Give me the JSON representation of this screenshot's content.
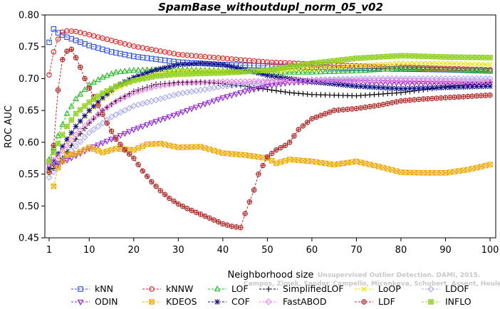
{
  "chart_data": {
    "type": "line",
    "title": "SpamBase_withoutdupl_norm_05_v02",
    "xlabel": "Neighborhood size",
    "ylabel": "ROC AUC",
    "xlim": [
      1,
      100
    ],
    "ylim": [
      0.45,
      0.8
    ],
    "xticks": [
      1,
      10,
      20,
      30,
      40,
      50,
      60,
      70,
      80,
      90,
      100
    ],
    "yticks": [
      0.45,
      0.5,
      0.55,
      0.6,
      0.65,
      0.7,
      0.75,
      0.8
    ],
    "ytick_labels": [
      "0.45",
      "0.50",
      "0.55",
      "0.60",
      "0.65",
      "0.70",
      "0.75",
      "0.80"
    ],
    "grid": false,
    "legend_position": "bottom",
    "credit": "Campos, Zimek, Sander, Campello, Micenkova, Schubert, Assent, Houle",
    "credit_line1": "Unsupervised Outlier Detection. DAMI, 2015.",
    "series": [
      {
        "name": "kNN",
        "color": "#2a4ed8",
        "marker": "square",
        "points": [
          [
            1,
            0.757
          ],
          [
            2,
            0.778
          ],
          [
            3,
            0.772
          ],
          [
            5,
            0.765
          ],
          [
            7,
            0.76
          ],
          [
            10,
            0.752
          ],
          [
            15,
            0.742
          ],
          [
            20,
            0.735
          ],
          [
            30,
            0.726
          ],
          [
            40,
            0.722
          ],
          [
            50,
            0.72
          ],
          [
            60,
            0.718
          ],
          [
            70,
            0.716
          ],
          [
            80,
            0.715
          ],
          [
            90,
            0.714
          ],
          [
            100,
            0.712
          ]
        ]
      },
      {
        "name": "kNNW",
        "color": "#e02020",
        "marker": "circle",
        "points": [
          [
            1,
            0.706
          ],
          [
            2,
            0.742
          ],
          [
            3,
            0.762
          ],
          [
            4,
            0.773
          ],
          [
            5,
            0.775
          ],
          [
            7,
            0.774
          ],
          [
            10,
            0.769
          ],
          [
            15,
            0.76
          ],
          [
            20,
            0.751
          ],
          [
            30,
            0.738
          ],
          [
            40,
            0.732
          ],
          [
            50,
            0.726
          ],
          [
            60,
            0.723
          ],
          [
            70,
            0.72
          ],
          [
            80,
            0.718
          ],
          [
            90,
            0.716
          ],
          [
            100,
            0.714
          ]
        ]
      },
      {
        "name": "LOF",
        "color": "#22b822",
        "marker": "triangle-up",
        "points": [
          [
            1,
            0.573
          ],
          [
            3,
            0.61
          ],
          [
            5,
            0.645
          ],
          [
            7,
            0.668
          ],
          [
            10,
            0.69
          ],
          [
            13,
            0.702
          ],
          [
            16,
            0.71
          ],
          [
            20,
            0.713
          ],
          [
            25,
            0.714
          ],
          [
            30,
            0.714
          ],
          [
            40,
            0.712
          ],
          [
            50,
            0.71
          ],
          [
            60,
            0.71
          ],
          [
            70,
            0.712
          ],
          [
            80,
            0.716
          ],
          [
            90,
            0.714
          ],
          [
            100,
            0.712
          ]
        ]
      },
      {
        "name": "SimplifiedLOF",
        "color": "#000000",
        "marker": "plus",
        "points": [
          [
            1,
            0.553
          ],
          [
            3,
            0.565
          ],
          [
            5,
            0.585
          ],
          [
            7,
            0.605
          ],
          [
            10,
            0.63
          ],
          [
            13,
            0.65
          ],
          [
            16,
            0.665
          ],
          [
            20,
            0.68
          ],
          [
            25,
            0.691
          ],
          [
            30,
            0.694
          ],
          [
            35,
            0.695
          ],
          [
            40,
            0.692
          ],
          [
            45,
            0.688
          ],
          [
            50,
            0.683
          ],
          [
            55,
            0.678
          ],
          [
            60,
            0.675
          ],
          [
            70,
            0.673
          ],
          [
            80,
            0.678
          ],
          [
            90,
            0.687
          ],
          [
            100,
            0.694
          ]
        ]
      },
      {
        "name": "LoOP",
        "color": "#e8e000",
        "marker": "x",
        "points": [
          [
            1,
            0.555
          ],
          [
            3,
            0.575
          ],
          [
            5,
            0.6
          ],
          [
            7,
            0.625
          ],
          [
            10,
            0.648
          ],
          [
            13,
            0.667
          ],
          [
            16,
            0.683
          ],
          [
            20,
            0.697
          ],
          [
            25,
            0.708
          ],
          [
            30,
            0.712
          ],
          [
            40,
            0.712
          ],
          [
            50,
            0.712
          ],
          [
            60,
            0.716
          ],
          [
            70,
            0.72
          ],
          [
            80,
            0.724
          ],
          [
            90,
            0.724
          ],
          [
            100,
            0.722
          ]
        ]
      },
      {
        "name": "LDOF",
        "color": "#a8a8f0",
        "marker": "diamond",
        "points": [
          [
            1,
            0.545
          ],
          [
            5,
            0.58
          ],
          [
            10,
            0.615
          ],
          [
            15,
            0.64
          ],
          [
            20,
            0.657
          ],
          [
            30,
            0.676
          ],
          [
            40,
            0.688
          ],
          [
            50,
            0.694
          ],
          [
            60,
            0.698
          ],
          [
            70,
            0.7
          ],
          [
            80,
            0.7
          ],
          [
            90,
            0.7
          ],
          [
            100,
            0.7
          ]
        ]
      },
      {
        "name": "ODIN",
        "color": "#9020d0",
        "marker": "triangle-down",
        "points": [
          [
            1,
            0.563
          ],
          [
            5,
            0.572
          ],
          [
            10,
            0.59
          ],
          [
            15,
            0.605
          ],
          [
            20,
            0.62
          ],
          [
            25,
            0.633
          ],
          [
            30,
            0.645
          ],
          [
            35,
            0.658
          ],
          [
            40,
            0.67
          ],
          [
            45,
            0.68
          ],
          [
            50,
            0.688
          ],
          [
            55,
            0.694
          ],
          [
            60,
            0.695
          ],
          [
            70,
            0.695
          ],
          [
            80,
            0.693
          ],
          [
            90,
            0.692
          ],
          [
            100,
            0.692
          ]
        ]
      },
      {
        "name": "KDEOS",
        "color": "#f0a800",
        "marker": "square-x",
        "points": [
          [
            2,
            0.531
          ],
          [
            3,
            0.56
          ],
          [
            5,
            0.58
          ],
          [
            7,
            0.582
          ],
          [
            10,
            0.592
          ],
          [
            13,
            0.584
          ],
          [
            16,
            0.59
          ],
          [
            20,
            0.588
          ],
          [
            23,
            0.597
          ],
          [
            26,
            0.598
          ],
          [
            30,
            0.592
          ],
          [
            35,
            0.593
          ],
          [
            40,
            0.583
          ],
          [
            45,
            0.58
          ],
          [
            50,
            0.575
          ],
          [
            52,
            0.567
          ],
          [
            55,
            0.573
          ],
          [
            60,
            0.57
          ],
          [
            65,
            0.565
          ],
          [
            70,
            0.57
          ],
          [
            75,
            0.562
          ],
          [
            80,
            0.553
          ],
          [
            85,
            0.552
          ],
          [
            90,
            0.552
          ],
          [
            95,
            0.557
          ],
          [
            100,
            0.565
          ]
        ]
      },
      {
        "name": "COF",
        "color": "#10108a",
        "marker": "star",
        "points": [
          [
            1,
            0.558
          ],
          [
            3,
            0.582
          ],
          [
            5,
            0.605
          ],
          [
            7,
            0.625
          ],
          [
            10,
            0.65
          ],
          [
            13,
            0.67
          ],
          [
            16,
            0.688
          ],
          [
            20,
            0.702
          ],
          [
            25,
            0.714
          ],
          [
            30,
            0.722
          ],
          [
            35,
            0.724
          ],
          [
            40,
            0.722
          ],
          [
            45,
            0.714
          ],
          [
            50,
            0.705
          ],
          [
            55,
            0.7
          ],
          [
            60,
            0.695
          ],
          [
            70,
            0.688
          ],
          [
            80,
            0.684
          ],
          [
            90,
            0.686
          ],
          [
            100,
            0.688
          ]
        ]
      },
      {
        "name": "FastABOD",
        "color": "#f080e8",
        "marker": "diamond",
        "points": [
          [
            1,
            0.566
          ],
          [
            3,
            0.578
          ],
          [
            5,
            0.595
          ],
          [
            7,
            0.612
          ],
          [
            10,
            0.632
          ],
          [
            13,
            0.65
          ],
          [
            16,
            0.664
          ],
          [
            20,
            0.678
          ],
          [
            25,
            0.688
          ],
          [
            30,
            0.693
          ],
          [
            40,
            0.695
          ],
          [
            50,
            0.696
          ],
          [
            60,
            0.697
          ],
          [
            70,
            0.697
          ],
          [
            80,
            0.697
          ],
          [
            90,
            0.696
          ],
          [
            100,
            0.695
          ]
        ]
      },
      {
        "name": "LDF",
        "color": "#b02828",
        "marker": "circle-plus",
        "points": [
          [
            1,
            0.553
          ],
          [
            2,
            0.595
          ],
          [
            3,
            0.682
          ],
          [
            4,
            0.73
          ],
          [
            5,
            0.743
          ],
          [
            6,
            0.746
          ],
          [
            7,
            0.733
          ],
          [
            8,
            0.718
          ],
          [
            9,
            0.7
          ],
          [
            10,
            0.685
          ],
          [
            12,
            0.658
          ],
          [
            14,
            0.63
          ],
          [
            16,
            0.605
          ],
          [
            18,
            0.588
          ],
          [
            20,
            0.575
          ],
          [
            22,
            0.555
          ],
          [
            24,
            0.538
          ],
          [
            26,
            0.524
          ],
          [
            28,
            0.512
          ],
          [
            30,
            0.503
          ],
          [
            32,
            0.496
          ],
          [
            34,
            0.49
          ],
          [
            36,
            0.484
          ],
          [
            38,
            0.478
          ],
          [
            40,
            0.472
          ],
          [
            42,
            0.468
          ],
          [
            44,
            0.466
          ],
          [
            45,
            0.488
          ],
          [
            47,
            0.525
          ],
          [
            48,
            0.55
          ],
          [
            50,
            0.577
          ],
          [
            52,
            0.588
          ],
          [
            54,
            0.595
          ],
          [
            55,
            0.6
          ],
          [
            57,
            0.62
          ],
          [
            60,
            0.637
          ],
          [
            65,
            0.65
          ],
          [
            70,
            0.653
          ],
          [
            75,
            0.658
          ],
          [
            80,
            0.665
          ],
          [
            85,
            0.668
          ],
          [
            90,
            0.67
          ],
          [
            95,
            0.672
          ],
          [
            100,
            0.674
          ]
        ]
      },
      {
        "name": "INFLO",
        "color": "#90d020",
        "marker": "square-star",
        "points": [
          [
            1,
            0.57
          ],
          [
            3,
            0.598
          ],
          [
            5,
            0.625
          ],
          [
            7,
            0.645
          ],
          [
            10,
            0.663
          ],
          [
            13,
            0.677
          ],
          [
            16,
            0.688
          ],
          [
            20,
            0.697
          ],
          [
            25,
            0.704
          ],
          [
            30,
            0.707
          ],
          [
            40,
            0.709
          ],
          [
            50,
            0.713
          ],
          [
            60,
            0.724
          ],
          [
            70,
            0.732
          ],
          [
            80,
            0.736
          ],
          [
            90,
            0.734
          ],
          [
            100,
            0.733
          ]
        ]
      }
    ]
  }
}
